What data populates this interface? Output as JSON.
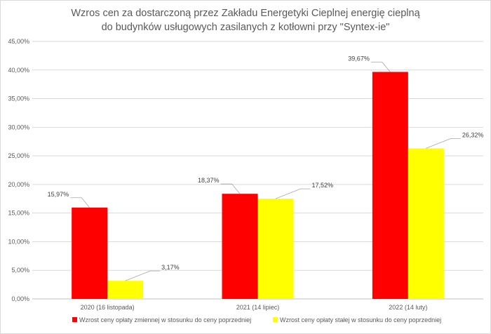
{
  "chart_data": {
    "type": "bar",
    "title_lines": [
      "Wzros cen za dostarczoną przez Zakładu Energetyki Cieplnej energię cieplną",
      "do budynków usługowych zasilanych z kotłowni przy \"Syntex-ie\""
    ],
    "categories": [
      "2020 (16 listopada)",
      "2021 (14 lipiec)",
      "2022 (14 luty)"
    ],
    "series": [
      {
        "name": "Wzrost ceny opłaty zmiennej w stosunku do ceny poprzedniej",
        "color": "#ff0000",
        "values": [
          15.97,
          18.37,
          39.67
        ],
        "labels": [
          "15,97%",
          "18,37%",
          "39,67%"
        ]
      },
      {
        "name": "Wzrost ceny opłaty stałej w stosunku do ceny poprzedniej",
        "color": "#ffff00",
        "values": [
          3.17,
          17.52,
          26.32
        ],
        "labels": [
          "3,17%",
          "17,52%",
          "26,32%"
        ]
      }
    ],
    "ylim": [
      0,
      45
    ],
    "yticks": [
      0,
      5,
      10,
      15,
      20,
      25,
      30,
      35,
      40,
      45
    ],
    "ytick_labels": [
      "0,00%",
      "5,00%",
      "10,00%",
      "15,00%",
      "20,00%",
      "25,00%",
      "30,00%",
      "35,00%",
      "40,00%",
      "45,00%"
    ],
    "grid": true,
    "legend_position": "bottom"
  }
}
